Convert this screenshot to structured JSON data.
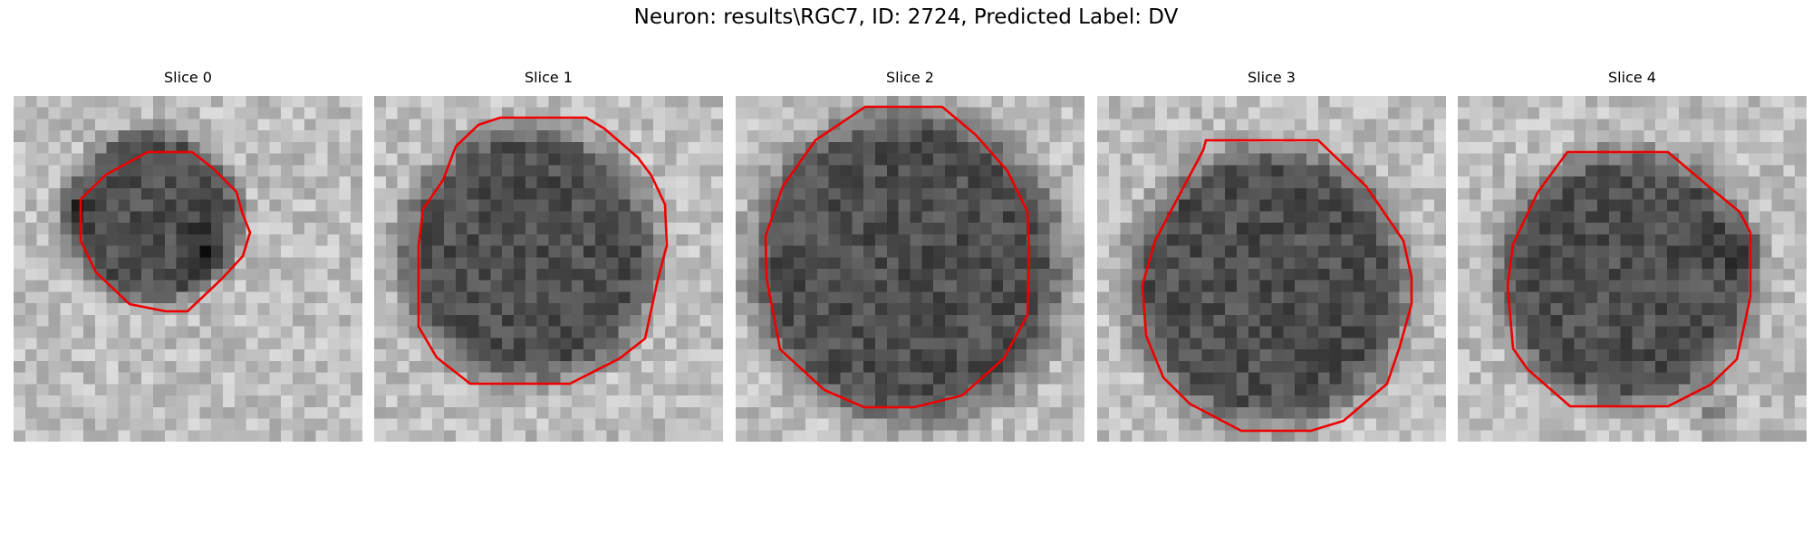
{
  "figure": {
    "title": "Neuron: results\\RGC7, ID: 2724, Predicted Label: DV"
  },
  "contour_color": "#ee0000",
  "colormap": "gray",
  "panels": [
    {
      "title": "Slice 0"
    },
    {
      "title": "Slice 1"
    },
    {
      "title": "Slice 2"
    },
    {
      "title": "Slice 3"
    },
    {
      "title": "Slice 4"
    }
  ]
}
